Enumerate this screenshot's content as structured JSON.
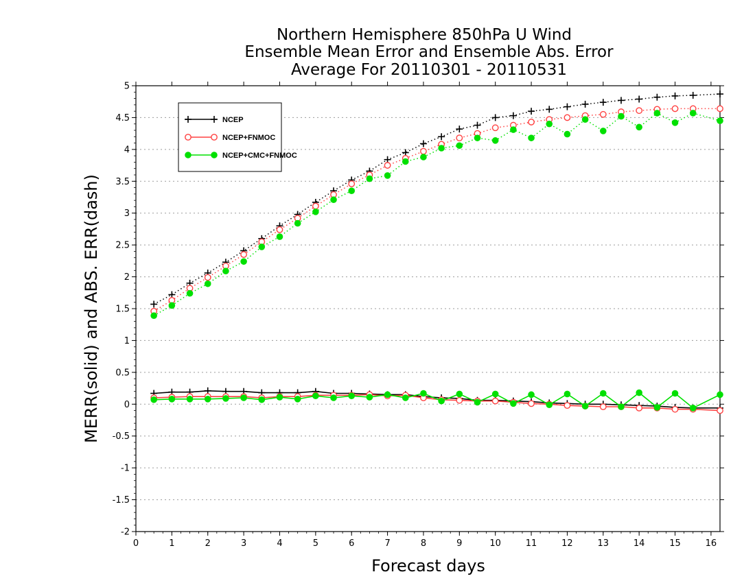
{
  "chart_data": {
    "type": "line",
    "title_lines": [
      "Northern Hemisphere 850hPa U Wind",
      "Ensemble Mean Error and Ensemble Abs. Error",
      "Average For 20110301 - 20110531"
    ],
    "xlabel": "Forecast days",
    "ylabel": "MERR(solid) and ABS. ERR(dash)",
    "xlim": [
      0,
      16.25
    ],
    "ylim": [
      -2,
      5
    ],
    "x_ticks": [
      "0",
      "1",
      "2",
      "3",
      "4",
      "5",
      "6",
      "7",
      "8",
      "9",
      "10",
      "11",
      "12",
      "13",
      "14",
      "15",
      "16"
    ],
    "y_ticks": [
      "5",
      "4.5",
      "4",
      "3.5",
      "3",
      "2.5",
      "2",
      "1.5",
      "1",
      "0.5",
      "0",
      "-0.5",
      "-1",
      "-1.5",
      "-2"
    ],
    "y_tick_values": [
      5,
      4.5,
      4,
      3.5,
      3,
      2.5,
      2,
      1.5,
      1,
      0.5,
      0,
      -0.5,
      -1,
      -1.5,
      -2
    ],
    "grid": "horizontal-dotted",
    "legend_position": "top-left",
    "x": [
      0.5,
      1,
      1.5,
      2,
      2.5,
      3,
      3.5,
      4,
      4.5,
      5,
      5.5,
      6,
      6.5,
      7,
      7.5,
      8,
      8.5,
      9,
      9.5,
      10,
      10.5,
      11,
      11.5,
      12,
      12.5,
      13,
      13.5,
      14,
      14.5,
      15,
      15.5,
      16.25
    ],
    "series": [
      {
        "name": "NCEP",
        "color": "#000000",
        "marker": "plus",
        "abs_err": [
          1.57,
          1.72,
          1.9,
          2.06,
          2.23,
          2.41,
          2.6,
          2.8,
          2.98,
          3.17,
          3.35,
          3.52,
          3.66,
          3.84,
          3.95,
          4.09,
          4.2,
          4.32,
          4.38,
          4.5,
          4.53,
          4.6,
          4.63,
          4.67,
          4.71,
          4.74,
          4.77,
          4.79,
          4.82,
          4.84,
          4.85,
          4.87
        ],
        "mean_err": [
          0.17,
          0.19,
          0.19,
          0.21,
          0.2,
          0.2,
          0.18,
          0.18,
          0.18,
          0.2,
          0.17,
          0.17,
          0.16,
          0.15,
          0.15,
          0.12,
          0.1,
          0.09,
          0.06,
          0.06,
          0.05,
          0.04,
          0.02,
          0.01,
          0.0,
          0.0,
          -0.01,
          -0.02,
          -0.03,
          -0.05,
          -0.06,
          -0.06
        ]
      },
      {
        "name": "NCEP+FNMOC",
        "color": "#ff4040",
        "marker": "open-circle",
        "abs_err": [
          1.46,
          1.63,
          1.82,
          1.99,
          2.17,
          2.35,
          2.55,
          2.74,
          2.92,
          3.11,
          3.29,
          3.46,
          3.6,
          3.75,
          3.86,
          3.97,
          4.08,
          4.18,
          4.25,
          4.34,
          4.38,
          4.43,
          4.47,
          4.5,
          4.53,
          4.55,
          4.59,
          4.61,
          4.63,
          4.64,
          4.64,
          4.64
        ],
        "mean_err": [
          0.1,
          0.11,
          0.12,
          0.12,
          0.12,
          0.12,
          0.1,
          0.12,
          0.12,
          0.14,
          0.14,
          0.14,
          0.15,
          0.13,
          0.14,
          0.1,
          0.07,
          0.06,
          0.05,
          0.05,
          0.03,
          0.01,
          0.0,
          -0.02,
          -0.03,
          -0.04,
          -0.04,
          -0.06,
          -0.06,
          -0.08,
          -0.08,
          -0.1
        ]
      },
      {
        "name": "NCEP+CMC+FNMOC",
        "color": "#00e000",
        "marker": "filled-circle",
        "abs_err": [
          1.39,
          1.55,
          1.74,
          1.89,
          2.09,
          2.24,
          2.47,
          2.63,
          2.84,
          3.02,
          3.21,
          3.35,
          3.54,
          3.59,
          3.81,
          3.88,
          4.02,
          4.06,
          4.18,
          4.14,
          4.31,
          4.18,
          4.4,
          4.24,
          4.47,
          4.29,
          4.52,
          4.35,
          4.57,
          4.42,
          4.57,
          4.45
        ],
        "mean_err": [
          0.07,
          0.08,
          0.08,
          0.08,
          0.09,
          0.1,
          0.07,
          0.11,
          0.08,
          0.13,
          0.1,
          0.13,
          0.11,
          0.15,
          0.1,
          0.17,
          0.05,
          0.16,
          0.03,
          0.16,
          0.01,
          0.15,
          -0.01,
          0.16,
          -0.03,
          0.17,
          -0.04,
          0.18,
          -0.05,
          0.17,
          -0.06,
          0.15
        ]
      }
    ]
  }
}
